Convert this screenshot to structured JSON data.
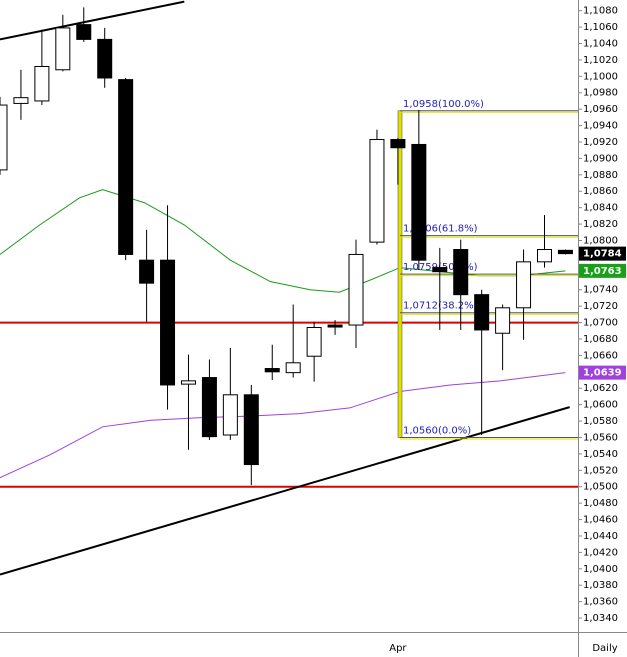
{
  "chart_data": {
    "type": "candlestick",
    "categories": [
      null,
      null,
      null,
      null,
      null,
      null,
      null,
      null,
      null,
      null,
      null,
      null,
      null,
      null,
      null,
      null,
      null,
      null,
      null,
      "Apr",
      null,
      null,
      null,
      null,
      null,
      null,
      null,
      null
    ],
    "open": [
      1.0886,
      1.0967,
      1.097,
      1.1008,
      1.1063,
      1.1045,
      1.0996,
      1.0776,
      1.0776,
      1.0625,
      1.0633,
      1.0563,
      1.0612,
      1.0644,
      1.0639,
      1.0659,
      1.0697,
      1.0697,
      1.0798,
      1.0923,
      1.0917,
      1.0767,
      1.0789,
      1.0734,
      1.0687,
      1.0718,
      1.0774,
      1.0788
    ],
    "high": [
      1.0975,
      1.1008,
      1.1057,
      1.1075,
      1.1084,
      1.1059,
      1.0998,
      1.0813,
      1.0843,
      1.0661,
      1.0655,
      1.0669,
      1.0624,
      1.0673,
      1.0722,
      1.0701,
      1.0703,
      1.0801,
      1.0935,
      1.0925,
      1.0959,
      1.0791,
      1.0801,
      1.074,
      1.0722,
      1.0789,
      1.0831,
      1.0789
    ],
    "low": [
      1.088,
      1.0947,
      1.0965,
      1.1006,
      1.1042,
      1.0986,
      1.0776,
      1.0701,
      1.0594,
      1.0545,
      1.0557,
      1.0557,
      1.0502,
      1.063,
      1.0633,
      1.0628,
      1.0685,
      1.0669,
      1.0795,
      1.0868,
      1.0764,
      1.0691,
      1.0691,
      1.0563,
      1.0642,
      1.0679,
      1.0767,
      1.0783
    ],
    "close": [
      1.0965,
      1.0974,
      1.1012,
      1.1059,
      1.1045,
      1.0998,
      1.0783,
      1.0748,
      1.0624,
      1.0629,
      1.0561,
      1.0612,
      1.0527,
      1.064,
      1.0651,
      1.0694,
      1.0695,
      1.0783,
      1.0923,
      1.0913,
      1.0776,
      1.0762,
      1.0734,
      1.0691,
      1.0718,
      1.0774,
      1.0789,
      1.0784
    ],
    "xlim": [
      0,
      27.6
    ],
    "ylim": [
      1.0323,
      1.1093
    ],
    "yticks": [
      {
        "value": 1.034,
        "label": "1,0340"
      },
      {
        "value": 1.036,
        "label": "1,0360"
      },
      {
        "value": 1.038,
        "label": "1,0380"
      },
      {
        "value": 1.04,
        "label": "1,0400"
      },
      {
        "value": 1.042,
        "label": "1,0420"
      },
      {
        "value": 1.044,
        "label": "1,0440"
      },
      {
        "value": 1.046,
        "label": "1,0460"
      },
      {
        "value": 1.048,
        "label": "1,0480"
      },
      {
        "value": 1.05,
        "label": "1,0500"
      },
      {
        "value": 1.052,
        "label": "1,0520"
      },
      {
        "value": 1.054,
        "label": "1,0540"
      },
      {
        "value": 1.056,
        "label": "1,0560"
      },
      {
        "value": 1.058,
        "label": "1,0580"
      },
      {
        "value": 1.06,
        "label": "1,0600"
      },
      {
        "value": 1.062,
        "label": "1,0620"
      },
      {
        "value": 1.064,
        "label": "1,0640"
      },
      {
        "value": 1.066,
        "label": "1,0660"
      },
      {
        "value": 1.068,
        "label": "1,0680"
      },
      {
        "value": 1.07,
        "label": "1,0700"
      },
      {
        "value": 1.072,
        "label": "1,0720"
      },
      {
        "value": 1.074,
        "label": "1,0740"
      },
      {
        "value": 1.076,
        "label": "1,0760"
      },
      {
        "value": 1.078,
        "label": "1,0780"
      },
      {
        "value": 1.08,
        "label": "1,0800"
      },
      {
        "value": 1.082,
        "label": "1,0820"
      },
      {
        "value": 1.084,
        "label": "1,0840"
      },
      {
        "value": 1.086,
        "label": "1,0860"
      },
      {
        "value": 1.088,
        "label": "1,0880"
      },
      {
        "value": 1.09,
        "label": "1,0900"
      },
      {
        "value": 1.092,
        "label": "1,0920"
      },
      {
        "value": 1.094,
        "label": "1,0940"
      },
      {
        "value": 1.096,
        "label": "1,0960"
      },
      {
        "value": 1.098,
        "label": "1,0980"
      },
      {
        "value": 1.1,
        "label": "1,1000"
      },
      {
        "value": 1.102,
        "label": "1,1020"
      },
      {
        "value": 1.104,
        "label": "1,1040"
      },
      {
        "value": 1.106,
        "label": "1,1060"
      },
      {
        "value": 1.108,
        "label": "1,1080"
      }
    ],
    "lines": [
      {
        "color": "#1a9a1a",
        "x": [
          0,
          1.9,
          3.8,
          4.9,
          6.9,
          8.8,
          11,
          12.9,
          14.8,
          16.2,
          17.7,
          19.1,
          21,
          22.9,
          24.8,
          27
        ],
        "values": [
          1.0783,
          1.0819,
          1.0852,
          1.0862,
          1.0846,
          1.0819,
          1.0776,
          1.075,
          1.074,
          1.0737,
          1.0752,
          1.0767,
          1.0762,
          1.0757,
          1.0757,
          1.0763
        ]
      },
      {
        "color": "#a040e0",
        "x": [
          0,
          2.4,
          4.9,
          7.2,
          9.5,
          11.9,
          14.3,
          16.7,
          19.1,
          21.5,
          23.9,
          27
        ],
        "values": [
          1.0511,
          1.0539,
          1.0573,
          1.0581,
          1.0584,
          1.0586,
          1.0589,
          1.0596,
          1.0616,
          1.0624,
          1.0629,
          1.0639
        ]
      }
    ],
    "trendlines": [
      {
        "color": "#000000",
        "x": [
          0,
          8.8
        ],
        "values": [
          1.1045,
          1.1091
        ]
      },
      {
        "color": "#000000",
        "x": [
          0,
          27.2
        ],
        "values": [
          1.0393,
          1.0597
        ]
      }
    ],
    "hlines": {
      "color": "#dd0000",
      "values": [
        1.07,
        1.05
      ]
    },
    "fibonacci": {
      "x": 19.1,
      "color": "#e0e000",
      "levels": [
        {
          "value": 1.0958,
          "label": "1,0958(100.0%)"
        },
        {
          "value": 1.0806,
          "label": "1,0806(61.8%)"
        },
        {
          "value": 1.0759,
          "label": "1,0759(50.0%)"
        },
        {
          "value": 1.0712,
          "label": "1,0712(38.2%)"
        },
        {
          "value": 1.056,
          "label": "1,0560(0.0%)"
        }
      ]
    },
    "price_tags": [
      {
        "value": 1.0784,
        "label": "1,0784",
        "color": "#000000"
      },
      {
        "value": 1.0763,
        "label": "1,0763",
        "color": "#19a019"
      },
      {
        "value": 1.0639,
        "label": "1,0639",
        "color": "#a040e0"
      }
    ],
    "period": "Daily"
  }
}
